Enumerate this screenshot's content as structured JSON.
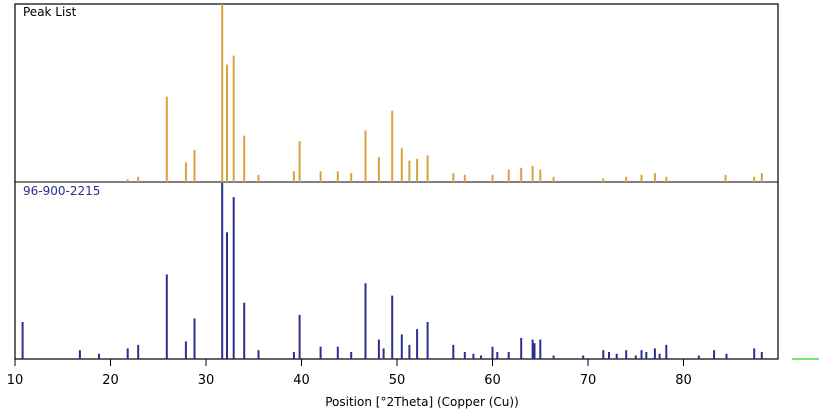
{
  "chart_data": {
    "type": "bar",
    "xlabel": "Position [°2Theta] (Copper (Cu))",
    "xlim": [
      10,
      90
    ],
    "x_ticks": [
      10,
      20,
      30,
      40,
      50,
      60,
      70,
      80
    ],
    "x_tick_labels": [
      "10",
      "20",
      "30",
      "40",
      "50",
      "60",
      "70",
      "80"
    ],
    "grid": false,
    "legend": "none",
    "panels": [
      {
        "name": "Peak List",
        "color": "#d9a23f",
        "ylim": [
          0,
          100
        ],
        "peaks": [
          {
            "x": 21.8,
            "y": 1.5
          },
          {
            "x": 22.9,
            "y": 3
          },
          {
            "x": 25.9,
            "y": 48
          },
          {
            "x": 27.9,
            "y": 11
          },
          {
            "x": 28.8,
            "y": 18
          },
          {
            "x": 31.7,
            "y": 100
          },
          {
            "x": 32.2,
            "y": 66
          },
          {
            "x": 32.9,
            "y": 71
          },
          {
            "x": 34.0,
            "y": 26
          },
          {
            "x": 35.5,
            "y": 4
          },
          {
            "x": 39.2,
            "y": 6
          },
          {
            "x": 39.8,
            "y": 23
          },
          {
            "x": 42.0,
            "y": 6
          },
          {
            "x": 43.8,
            "y": 6
          },
          {
            "x": 45.2,
            "y": 5
          },
          {
            "x": 46.7,
            "y": 29
          },
          {
            "x": 48.1,
            "y": 14
          },
          {
            "x": 49.5,
            "y": 40
          },
          {
            "x": 50.5,
            "y": 19
          },
          {
            "x": 51.3,
            "y": 12
          },
          {
            "x": 52.1,
            "y": 13
          },
          {
            "x": 53.2,
            "y": 15
          },
          {
            "x": 55.9,
            "y": 5
          },
          {
            "x": 57.1,
            "y": 4
          },
          {
            "x": 60.0,
            "y": 4
          },
          {
            "x": 61.7,
            "y": 7
          },
          {
            "x": 63.0,
            "y": 8
          },
          {
            "x": 64.2,
            "y": 9
          },
          {
            "x": 65.0,
            "y": 7
          },
          {
            "x": 66.4,
            "y": 3
          },
          {
            "x": 71.6,
            "y": 2
          },
          {
            "x": 74.0,
            "y": 3
          },
          {
            "x": 75.6,
            "y": 4
          },
          {
            "x": 77.0,
            "y": 5
          },
          {
            "x": 78.2,
            "y": 3
          },
          {
            "x": 84.4,
            "y": 4
          },
          {
            "x": 87.4,
            "y": 3
          },
          {
            "x": 88.2,
            "y": 5
          }
        ]
      },
      {
        "name": "96-900-2215",
        "color": "#2a2f8f",
        "ylim": [
          0,
          100
        ],
        "peaks": [
          {
            "x": 10.8,
            "y": 21
          },
          {
            "x": 16.8,
            "y": 5
          },
          {
            "x": 18.8,
            "y": 3
          },
          {
            "x": 21.8,
            "y": 6
          },
          {
            "x": 22.9,
            "y": 8
          },
          {
            "x": 25.9,
            "y": 48
          },
          {
            "x": 27.9,
            "y": 10
          },
          {
            "x": 28.8,
            "y": 23
          },
          {
            "x": 31.7,
            "y": 100
          },
          {
            "x": 32.2,
            "y": 72
          },
          {
            "x": 32.9,
            "y": 92
          },
          {
            "x": 34.0,
            "y": 32
          },
          {
            "x": 35.5,
            "y": 5
          },
          {
            "x": 39.2,
            "y": 4
          },
          {
            "x": 39.8,
            "y": 25
          },
          {
            "x": 42.0,
            "y": 7
          },
          {
            "x": 43.8,
            "y": 7
          },
          {
            "x": 45.2,
            "y": 4
          },
          {
            "x": 46.7,
            "y": 43
          },
          {
            "x": 48.1,
            "y": 11
          },
          {
            "x": 48.6,
            "y": 6
          },
          {
            "x": 49.5,
            "y": 36
          },
          {
            "x": 50.5,
            "y": 14
          },
          {
            "x": 51.3,
            "y": 8
          },
          {
            "x": 52.1,
            "y": 17
          },
          {
            "x": 53.2,
            "y": 21
          },
          {
            "x": 55.9,
            "y": 8
          },
          {
            "x": 57.1,
            "y": 4
          },
          {
            "x": 58.0,
            "y": 3
          },
          {
            "x": 58.8,
            "y": 2
          },
          {
            "x": 60.0,
            "y": 7
          },
          {
            "x": 60.5,
            "y": 4
          },
          {
            "x": 61.7,
            "y": 4
          },
          {
            "x": 63.0,
            "y": 12
          },
          {
            "x": 64.2,
            "y": 11
          },
          {
            "x": 64.4,
            "y": 9
          },
          {
            "x": 65.0,
            "y": 11
          },
          {
            "x": 66.4,
            "y": 2
          },
          {
            "x": 69.5,
            "y": 2
          },
          {
            "x": 71.6,
            "y": 5
          },
          {
            "x": 72.2,
            "y": 4
          },
          {
            "x": 73.0,
            "y": 3
          },
          {
            "x": 74.0,
            "y": 5
          },
          {
            "x": 75.0,
            "y": 2
          },
          {
            "x": 75.6,
            "y": 5
          },
          {
            "x": 76.1,
            "y": 4
          },
          {
            "x": 77.0,
            "y": 6
          },
          {
            "x": 77.5,
            "y": 3
          },
          {
            "x": 78.2,
            "y": 8
          },
          {
            "x": 81.6,
            "y": 2
          },
          {
            "x": 83.2,
            "y": 5
          },
          {
            "x": 84.5,
            "y": 3
          },
          {
            "x": 87.4,
            "y": 6
          },
          {
            "x": 88.2,
            "y": 4
          }
        ]
      }
    ]
  }
}
